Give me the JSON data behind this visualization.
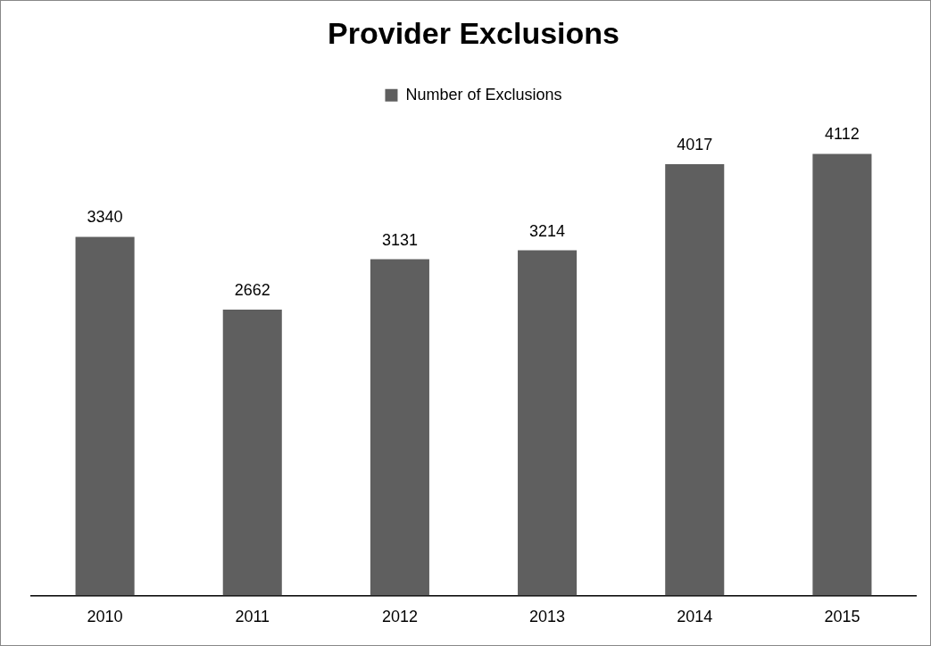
{
  "chart_data": {
    "type": "bar",
    "title": "Provider Exclusions",
    "categories": [
      "2010",
      "2011",
      "2012",
      "2013",
      "2014",
      "2015"
    ],
    "series": [
      {
        "name": "Number of Exclusions",
        "color": "#5f5f5f",
        "values": [
          3340,
          2662,
          3131,
          3214,
          4017,
          4112
        ]
      }
    ],
    "data_labels": true,
    "legend": "top",
    "grid": false
  }
}
